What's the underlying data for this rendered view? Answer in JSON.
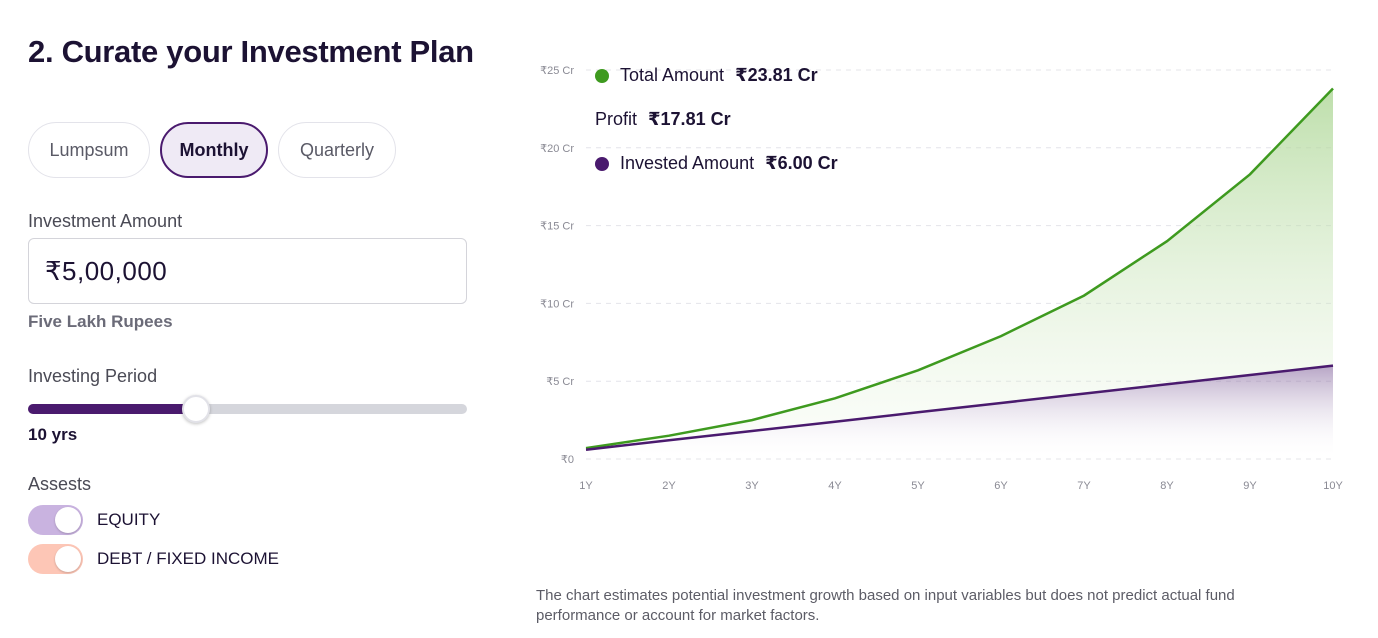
{
  "title": "2. Curate your Investment Plan",
  "frequency": {
    "options": [
      "Lumpsum",
      "Monthly",
      "Quarterly"
    ],
    "selected": "Monthly"
  },
  "investment": {
    "label": "Investment Amount",
    "value": "₹5,00,000",
    "in_words": "Five Lakh Rupees"
  },
  "period": {
    "label": "Investing Period",
    "value_label": "10 yrs",
    "years": 10,
    "min_years": 1,
    "max_years": 30
  },
  "assets": {
    "label": "Assests",
    "items": [
      {
        "label": "EQUITY",
        "enabled": true,
        "color": "#c9b3e0"
      },
      {
        "label": "DEBT / FIXED INCOME",
        "enabled": true,
        "color": "#fdc6b6"
      }
    ]
  },
  "summary": {
    "total_label": "Total Amount",
    "total_value": "₹23.81 Cr",
    "profit_label": "Profit",
    "profit_value": "₹17.81 Cr",
    "invested_label": "Invested Amount",
    "invested_value": "₹6.00 Cr",
    "total_color": "#3e9a1f",
    "invested_color": "#4a1a6e"
  },
  "chart_data": {
    "type": "area",
    "x": [
      "1Y",
      "2Y",
      "3Y",
      "4Y",
      "5Y",
      "6Y",
      "7Y",
      "8Y",
      "9Y",
      "10Y"
    ],
    "series": [
      {
        "name": "Total Amount",
        "values": [
          0.7,
          1.5,
          2.5,
          3.9,
          5.7,
          7.9,
          10.5,
          14.0,
          18.3,
          23.81
        ],
        "color": "#3e9a1f"
      },
      {
        "name": "Invested Amount",
        "values": [
          0.6,
          1.2,
          1.8,
          2.4,
          3.0,
          3.6,
          4.2,
          4.8,
          5.4,
          6.0
        ],
        "color": "#4a1a6e"
      }
    ],
    "ylim": [
      0,
      25
    ],
    "yticks": [
      0,
      5,
      10,
      15,
      20,
      25
    ],
    "ytick_labels": [
      "₹0",
      "₹5 Cr",
      "₹10 Cr",
      "₹15 Cr",
      "₹20 Cr",
      "₹25 Cr"
    ],
    "grid": true
  },
  "disclaimer": "The chart estimates potential investment growth based on input variables but does not predict actual fund performance or account for market factors."
}
